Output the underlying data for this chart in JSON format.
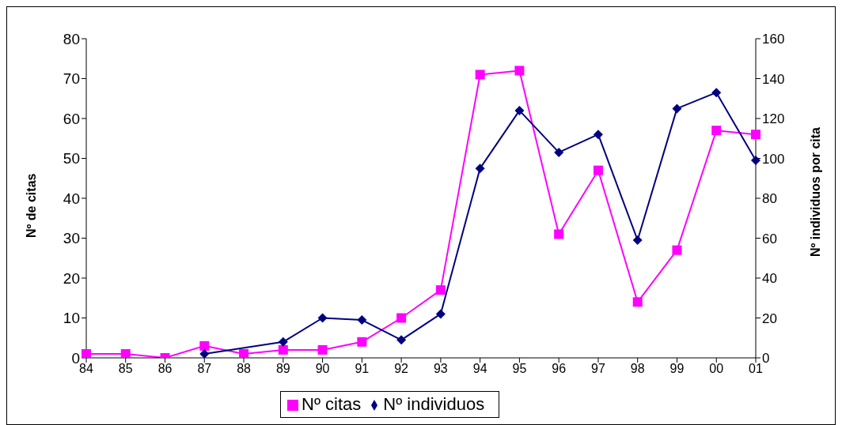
{
  "chart_data": {
    "type": "line",
    "xlabel": null,
    "ylabel": "Nº de citas",
    "y2label": "Nº individuos por cita",
    "categories": [
      "84",
      "85",
      "86",
      "87",
      "88",
      "89",
      "90",
      "91",
      "92",
      "93",
      "94",
      "95",
      "96",
      "97",
      "98",
      "99",
      "00",
      "01"
    ],
    "series": [
      {
        "name": "Nº citas",
        "color": "#ff00ff",
        "marker": "square",
        "values": [
          1,
          1,
          0,
          3,
          1,
          2,
          2,
          4,
          10,
          17,
          71,
          72,
          31,
          47,
          14,
          27,
          57,
          56
        ]
      },
      {
        "name": "Nº individuos",
        "color": "#000080",
        "marker": "diamond",
        "axis": "y2",
        "values": [
          null,
          null,
          null,
          2,
          null,
          8,
          20,
          19,
          9,
          22,
          95,
          124,
          103,
          112,
          59,
          125,
          133,
          99
        ]
      }
    ],
    "ylim": [
      0,
      80
    ],
    "yticks": [
      0,
      10,
      20,
      30,
      40,
      50,
      60,
      70,
      80
    ],
    "y2lim": [
      0,
      160
    ],
    "y2ticks": [
      0,
      20,
      40,
      60,
      80,
      100,
      120,
      140,
      160
    ],
    "grid": false,
    "legend": "bottom"
  }
}
